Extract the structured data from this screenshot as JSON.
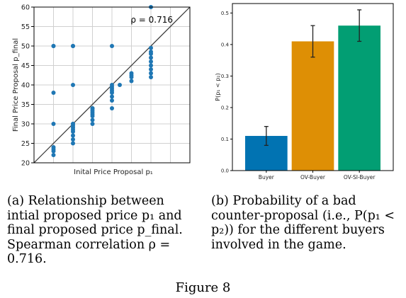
{
  "chart_data": [
    {
      "type": "scatter",
      "title": "",
      "xlabel": "Inital Price Proposal p₁",
      "ylabel": "Final Price Proposal p_final",
      "xlim": [
        20,
        60
      ],
      "ylim": [
        20,
        60
      ],
      "yticks": [
        20,
        25,
        30,
        35,
        40,
        45,
        50,
        55,
        60
      ],
      "grid": true,
      "annotation": "ρ = 0.716",
      "reference_line": "y = x",
      "color": "#1f77b4",
      "x": [
        25,
        25,
        25,
        25,
        25,
        25,
        25,
        25,
        30,
        30,
        30,
        30,
        30,
        30,
        30,
        30,
        30,
        30,
        30,
        30,
        35,
        35,
        35,
        35,
        35,
        35,
        35,
        35,
        40,
        40,
        40,
        40,
        40,
        40,
        40,
        40,
        40,
        42,
        45,
        45,
        45,
        45,
        50,
        50,
        50,
        50,
        50,
        50,
        50,
        50,
        50,
        50
      ],
      "y": [
        22,
        23,
        23.5,
        24,
        30,
        38,
        50,
        50,
        25,
        26,
        27,
        28,
        28.5,
        29,
        29.5,
        30,
        30,
        40,
        50,
        50,
        30,
        31,
        32,
        32.5,
        33,
        33.5,
        34,
        34,
        34,
        36,
        37,
        38,
        38.5,
        39,
        39.5,
        40,
        50,
        40,
        41,
        42,
        42.5,
        43,
        42,
        43,
        44,
        45,
        46,
        47,
        48,
        48.5,
        49.5,
        60
      ]
    },
    {
      "type": "bar",
      "title": "",
      "xlabel": "",
      "ylabel": "P(p₁ < p₂)",
      "categories": [
        "Buyer",
        "OV-Buyer",
        "OV-SI-Buyer"
      ],
      "values": [
        0.11,
        0.41,
        0.46
      ],
      "errors": [
        0.03,
        0.05,
        0.05
      ],
      "colors": [
        "#0173b2",
        "#de8f05",
        "#029e73"
      ],
      "ylim": [
        0,
        0.53
      ],
      "yticks": [
        0.0,
        0.1,
        0.2,
        0.3,
        0.4,
        0.5
      ],
      "grid": false
    }
  ],
  "captions": {
    "a": "(a) Relationship between intial proposed price p₁ and final proposed price p_final. Spearman correlation ρ = 0.716.",
    "b": "(b) Probability of a bad counter-proposal (i.e., P(p₁ < p₂)) for the different buyers involved in the game."
  },
  "figure_label": "Figure 8"
}
